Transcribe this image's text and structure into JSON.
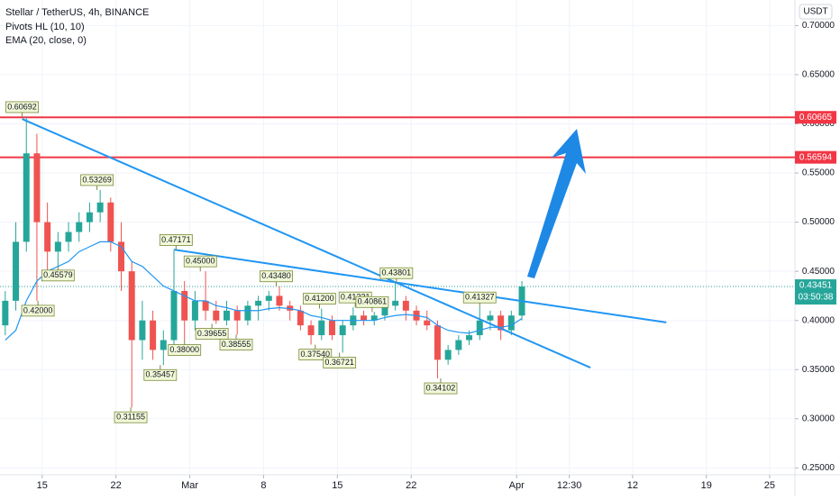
{
  "chart_data": {
    "type": "candlestick",
    "title": "Stellar / TetherUS, 4h, BINANCE",
    "indicators": [
      "Pivots HL (10, 10)",
      "EMA (20, close, 0)"
    ],
    "currency": "USDT",
    "up_color": "#26a69a",
    "down_color": "#ef5350",
    "x": [
      11.5,
      12.5,
      13.5,
      14.5,
      15.5,
      16.5,
      17.5,
      18.5,
      19.5,
      20.5,
      21.5,
      22.5,
      23.5,
      24.5,
      25.5,
      26.5,
      27.5,
      28.5,
      29.5,
      30.5,
      31.5,
      32.5,
      33.5,
      34.5,
      35.5,
      36.5,
      37.5,
      38.5,
      39.5,
      40.5,
      41.5,
      42.5,
      43.5,
      44.5,
      45.5,
      46.5,
      47.5,
      48.5,
      49.5,
      50.5,
      51.5,
      52.5,
      53.5,
      54.5,
      55.5,
      56.5,
      57.5,
      58.5,
      59.5,
      60.5
    ],
    "open": [
      0.395,
      0.42,
      0.48,
      0.57,
      0.5,
      0.47,
      0.48,
      0.49,
      0.5,
      0.51,
      0.52,
      0.48,
      0.45,
      0.38,
      0.4,
      0.37,
      0.38,
      0.43,
      0.4,
      0.42,
      0.41,
      0.4,
      0.41,
      0.4,
      0.415,
      0.42,
      0.425,
      0.415,
      0.41,
      0.395,
      0.385,
      0.4,
      0.385,
      0.395,
      0.405,
      0.4,
      0.405,
      0.415,
      0.42,
      0.41,
      0.4,
      0.395,
      0.36,
      0.37,
      0.38,
      0.385,
      0.4,
      0.405,
      0.39,
      0.405
    ],
    "high": [
      0.43,
      0.5,
      0.60692,
      0.59,
      0.52,
      0.49,
      0.5,
      0.51,
      0.52,
      0.53269,
      0.525,
      0.5,
      0.46,
      0.42,
      0.41,
      0.39,
      0.47171,
      0.44,
      0.43,
      0.45,
      0.42,
      0.42,
      0.415,
      0.42,
      0.425,
      0.43,
      0.4348,
      0.42,
      0.415,
      0.4,
      0.412,
      0.405,
      0.4,
      0.41331,
      0.41,
      0.40861,
      0.42,
      0.43801,
      0.425,
      0.415,
      0.41,
      0.4,
      0.375,
      0.385,
      0.39,
      0.41327,
      0.41,
      0.41,
      0.41,
      0.44
    ],
    "low": [
      0.385,
      0.41,
      0.47,
      0.42,
      0.45,
      0.45579,
      0.47,
      0.48,
      0.49,
      0.5,
      0.47,
      0.43,
      0.31155,
      0.36,
      0.36,
      0.35457,
      0.37,
      0.38,
      0.39,
      0.4,
      0.39655,
      0.395,
      0.38555,
      0.395,
      0.4,
      0.41,
      0.41,
      0.4,
      0.39,
      0.3754,
      0.38,
      0.38,
      0.36721,
      0.39,
      0.395,
      0.395,
      0.4,
      0.41,
      0.4,
      0.395,
      0.39,
      0.34102,
      0.355,
      0.365,
      0.375,
      0.38,
      0.39,
      0.38,
      0.385,
      0.4
    ],
    "close": [
      0.42,
      0.48,
      0.57,
      0.5,
      0.47,
      0.48,
      0.49,
      0.5,
      0.51,
      0.52,
      0.48,
      0.45,
      0.38,
      0.4,
      0.37,
      0.38,
      0.43,
      0.4,
      0.42,
      0.41,
      0.4,
      0.41,
      0.4,
      0.415,
      0.42,
      0.425,
      0.415,
      0.41,
      0.395,
      0.385,
      0.4,
      0.385,
      0.395,
      0.405,
      0.4,
      0.405,
      0.415,
      0.42,
      0.41,
      0.4,
      0.395,
      0.36,
      0.37,
      0.38,
      0.385,
      0.4,
      0.405,
      0.39,
      0.405,
      0.43451
    ],
    "ema": {
      "color": "#2196f3",
      "values": [
        0.38,
        0.39,
        0.42,
        0.44,
        0.45,
        0.455,
        0.46,
        0.47,
        0.475,
        0.48,
        0.48,
        0.475,
        0.46,
        0.455,
        0.445,
        0.435,
        0.43,
        0.425,
        0.42,
        0.42,
        0.415,
        0.413,
        0.41,
        0.41,
        0.41,
        0.412,
        0.413,
        0.412,
        0.41,
        0.405,
        0.403,
        0.4,
        0.4,
        0.4,
        0.4,
        0.4,
        0.403,
        0.405,
        0.406,
        0.405,
        0.403,
        0.395,
        0.39,
        0.388,
        0.387,
        0.39,
        0.393,
        0.393,
        0.395,
        0.402
      ]
    },
    "pivot_highs": [
      {
        "x": 13.1,
        "value": 0.60692
      },
      {
        "x": 20.2,
        "value": 0.53269
      },
      {
        "x": 27.7,
        "value": 0.47171
      },
      {
        "x": 30,
        "value": 0.45,
        "label": "0.45000"
      },
      {
        "x": 37.2,
        "value": 0.4348,
        "label": "0.43480"
      },
      {
        "x": 41.3,
        "value": 0.412,
        "label": "0.41200"
      },
      {
        "x": 44.7,
        "value": 0.41331
      },
      {
        "x": 46.3,
        "value": 0.40861
      },
      {
        "x": 48.6,
        "value": 0.43801
      },
      {
        "x": 56.5,
        "value": 0.41327
      }
    ],
    "pivot_lows": [
      {
        "x": 14.6,
        "value": 0.42,
        "label": "0.42000"
      },
      {
        "x": 16.5,
        "value": 0.45579
      },
      {
        "x": 23.4,
        "value": 0.31155
      },
      {
        "x": 26.2,
        "value": 0.35457
      },
      {
        "x": 28.5,
        "value": 0.38,
        "label": "0.38000"
      },
      {
        "x": 31.1,
        "value": 0.39655
      },
      {
        "x": 33.4,
        "value": 0.38555
      },
      {
        "x": 40.9,
        "value": 0.3754,
        "label": "0.37540"
      },
      {
        "x": 43.2,
        "value": 0.36721
      },
      {
        "x": 52.8,
        "value": 0.34102
      }
    ],
    "hlines": [
      {
        "value": 0.60665,
        "color": "#f23645"
      },
      {
        "value": 0.56594,
        "color": "#f23645"
      }
    ],
    "trendlines": [
      {
        "x": [
          13.1,
          67
        ],
        "y": [
          0.605,
          0.352
        ],
        "color": "#2196f3"
      },
      {
        "x": [
          27.5,
          74.2
        ],
        "y": [
          0.472,
          0.398
        ],
        "color": "#2196f3"
      }
    ],
    "last_price": {
      "value": 0.43451,
      "countdown": "03:50:38"
    },
    "xlim": [
      11,
      86.4
    ],
    "xticks": [
      {
        "value": 15,
        "label": "15"
      },
      {
        "value": 22,
        "label": "22"
      },
      {
        "value": 29,
        "label": "Mar"
      },
      {
        "value": 36,
        "label": "8"
      },
      {
        "value": 43,
        "label": "15"
      },
      {
        "value": 50,
        "label": "22"
      },
      {
        "value": 60,
        "label": "Apr"
      },
      {
        "value": 65,
        "label": "12:30"
      },
      {
        "value": 71,
        "label": "12"
      },
      {
        "value": 78,
        "label": "19"
      },
      {
        "value": 84,
        "label": "25"
      }
    ],
    "ylim": [
      0.243,
      0.726
    ],
    "yticks": [
      {
        "value": 0.25,
        "label": "0.25000"
      },
      {
        "value": 0.3,
        "label": "0.30000"
      },
      {
        "value": 0.35,
        "label": "0.35000"
      },
      {
        "value": 0.4,
        "label": "0.40000"
      },
      {
        "value": 0.45,
        "label": "0.45000"
      },
      {
        "value": 0.5,
        "label": "0.50000"
      },
      {
        "value": 0.55,
        "label": "0.55000"
      },
      {
        "value": 0.6,
        "label": "0.60000"
      },
      {
        "value": 0.65,
        "label": "0.65000"
      },
      {
        "value": 0.7,
        "label": "0.70000"
      }
    ]
  }
}
